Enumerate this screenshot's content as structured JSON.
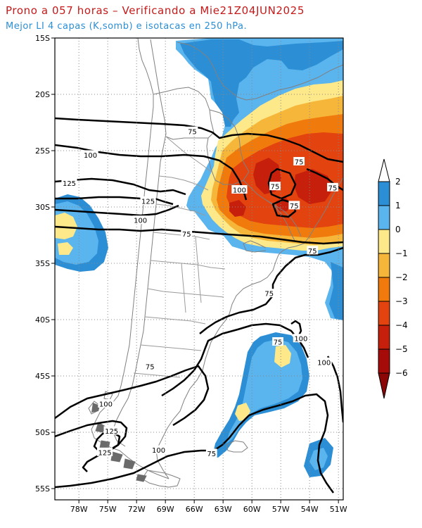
{
  "header": {
    "title": "Prono a 057 horas – Verificando a Mie21Z04JUN2025",
    "subtitle": "Mejor LI 4 capas (K,somb) e isotacas en 250 hPa."
  },
  "map": {
    "lat_range": [
      -56,
      -15
    ],
    "lon_range": [
      -80.5,
      -50.5
    ],
    "lat_ticks": [
      "15S",
      "20S",
      "25S",
      "30S",
      "35S",
      "40S",
      "45S",
      "50S",
      "55S"
    ],
    "lon_ticks": [
      "78W",
      "75W",
      "72W",
      "69W",
      "66W",
      "63W",
      "60W",
      "57W",
      "54W",
      "51W"
    ],
    "gridlines": "dotted"
  },
  "isotach_labels": [
    {
      "text": "75",
      "lon": -66.2,
      "lat": -23.3
    },
    {
      "text": "100",
      "lon": -76.8,
      "lat": -25.4
    },
    {
      "text": "125",
      "lon": -79.0,
      "lat": -27.9
    },
    {
      "text": "125",
      "lon": -70.8,
      "lat": -29.5
    },
    {
      "text": "100",
      "lon": -71.6,
      "lat": -31.2
    },
    {
      "text": "75",
      "lon": -66.8,
      "lat": -32.4
    },
    {
      "text": "100",
      "lon": -61.3,
      "lat": -28.5
    },
    {
      "text": "75",
      "lon": -57.6,
      "lat": -28.2
    },
    {
      "text": "75",
      "lon": -55.1,
      "lat": -26.0
    },
    {
      "text": "75",
      "lon": -51.6,
      "lat": -28.3
    },
    {
      "text": "75",
      "lon": -55.6,
      "lat": -29.9
    },
    {
      "text": "75",
      "lon": -53.7,
      "lat": -33.9
    },
    {
      "text": "75",
      "lon": -58.2,
      "lat": -37.7
    },
    {
      "text": "100",
      "lon": -54.9,
      "lat": -41.7
    },
    {
      "text": "75",
      "lon": -57.3,
      "lat": -42.0
    },
    {
      "text": "100",
      "lon": -52.5,
      "lat": -43.8
    },
    {
      "text": "75",
      "lon": -70.6,
      "lat": -44.2
    },
    {
      "text": "100",
      "lon": -75.2,
      "lat": -47.5
    },
    {
      "text": "125",
      "lon": -74.6,
      "lat": -49.9
    },
    {
      "text": "125",
      "lon": -75.3,
      "lat": -51.8
    },
    {
      "text": "100",
      "lon": -69.7,
      "lat": -51.6
    },
    {
      "text": "75",
      "lon": -64.2,
      "lat": -51.9
    }
  ],
  "colorbar": {
    "labels": [
      "2",
      "1",
      "0",
      "−1",
      "−2",
      "−3",
      "−4",
      "−5",
      "−6"
    ],
    "colors": {
      "above_2": "#ffffff",
      "1_to_2": "#2c8fd6",
      "0_to_1": "#5ab4ee",
      "m1_to_0": "#fde98a",
      "m2_to_m1": "#f6b63a",
      "m3_to_m2": "#f07b0c",
      "m4_to_m3": "#e2430f",
      "m5_to_m4": "#c6200c",
      "m6_to_m5": "#a50b08",
      "below_m6": "#8b0606"
    }
  }
}
